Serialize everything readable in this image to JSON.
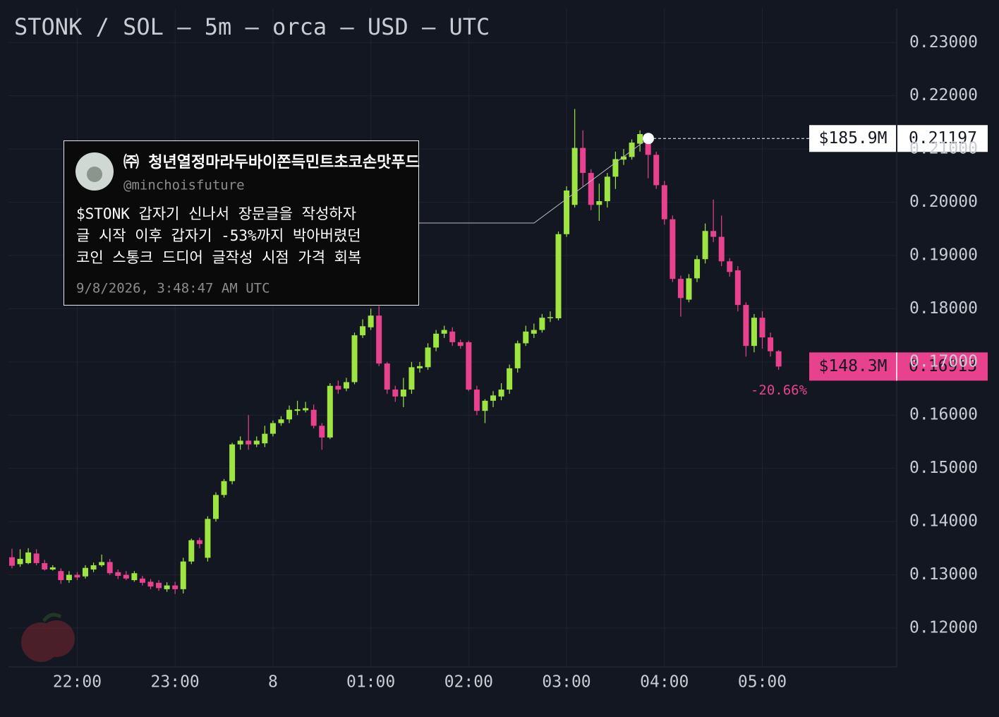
{
  "chart_data": {
    "type": "candlestick",
    "title": "STONK / SOL — 5m — orca — USD — UTC",
    "categories": [
      null,
      null,
      null,
      null,
      null,
      null,
      null,
      null,
      "22:00",
      null,
      null,
      null,
      null,
      null,
      null,
      null,
      null,
      null,
      null,
      null,
      "23:00",
      null,
      null,
      null,
      null,
      null,
      null,
      null,
      null,
      null,
      null,
      null,
      "8",
      null,
      null,
      null,
      null,
      null,
      null,
      null,
      null,
      null,
      null,
      null,
      "01:00",
      null,
      null,
      null,
      null,
      null,
      null,
      null,
      null,
      null,
      null,
      null,
      "02:00",
      null,
      null,
      null,
      null,
      null,
      null,
      null,
      null,
      null,
      null,
      null,
      "03:00",
      null,
      null,
      null,
      null,
      null,
      null,
      null,
      null,
      null,
      null,
      null,
      "04:00",
      null,
      null,
      null,
      null,
      null,
      null,
      null,
      null,
      null,
      null,
      null,
      "05:00",
      null,
      null
    ],
    "open": [
      0.1333,
      0.132,
      0.1322,
      0.134,
      0.1322,
      0.131,
      0.1307,
      0.129,
      0.13,
      0.1297,
      0.131,
      0.1318,
      0.1324,
      0.1305,
      0.13,
      0.129,
      0.1293,
      0.1287,
      0.1285,
      0.1273,
      0.128,
      0.1273,
      0.1325,
      0.1365,
      0.1332,
      0.1405,
      0.145,
      0.1476,
      0.1545,
      0.1552,
      0.1545,
      0.1547,
      0.1565,
      0.1585,
      0.1592,
      0.1608,
      0.1609,
      0.161,
      0.158,
      0.1558,
      0.1655,
      0.165,
      0.1662,
      0.175,
      0.1765,
      0.1787,
      0.1697,
      0.1648,
      0.1635,
      0.1648,
      0.1688,
      0.169,
      0.1727,
      0.1753,
      0.1757,
      0.1737,
      0.1737,
      0.1648,
      0.1608,
      0.1627,
      0.1635,
      0.1648,
      0.1688,
      0.1735,
      0.1753,
      0.176,
      0.1782,
      0.1782,
      0.194,
      0.1995,
      0.2102,
      0.2055,
      0.1995,
      0.2002,
      0.2048,
      0.208,
      0.2085,
      0.211,
      0.2122,
      0.2089,
      0.2032,
      0.1968,
      0.1856,
      0.1817,
      0.1857,
      0.1893,
      0.1946,
      0.1935,
      0.1889,
      0.1872,
      0.1807,
      0.173,
      0.1783,
      0.1746,
      0.172
    ],
    "high": [
      0.1349,
      0.1348,
      0.135,
      0.1348,
      0.1328,
      0.1318,
      0.1312,
      0.1307,
      0.1305,
      0.1318,
      0.1323,
      0.1338,
      0.133,
      0.131,
      0.1307,
      0.1307,
      0.1298,
      0.1292,
      0.129,
      0.1286,
      0.1287,
      0.1332,
      0.1368,
      0.137,
      0.141,
      0.1455,
      0.148,
      0.1548,
      0.156,
      0.16,
      0.156,
      0.158,
      0.159,
      0.1598,
      0.1618,
      0.1627,
      0.1625,
      0.162,
      0.1585,
      0.166,
      0.1665,
      0.167,
      0.1755,
      0.178,
      0.18,
      0.1805,
      0.17,
      0.1655,
      0.167,
      0.17,
      0.17,
      0.1735,
      0.176,
      0.1768,
      0.1765,
      0.1742,
      0.174,
      0.1655,
      0.163,
      0.1645,
      0.166,
      0.1695,
      0.174,
      0.1768,
      0.1772,
      0.179,
      0.1795,
      0.1945,
      0.203,
      0.2175,
      0.2135,
      0.2062,
      0.2035,
      0.2055,
      0.2095,
      0.21,
      0.2118,
      0.2135,
      0.2125,
      0.2095,
      0.204,
      0.1975,
      0.1862,
      0.1865,
      0.19,
      0.196,
      0.2005,
      0.1975,
      0.1895,
      0.188,
      0.1812,
      0.179,
      0.1795,
      0.1755,
      0.1722
    ],
    "low": [
      0.1312,
      0.1315,
      0.132,
      0.1318,
      0.1308,
      0.1308,
      0.1283,
      0.1285,
      0.129,
      0.1293,
      0.1305,
      0.1315,
      0.13,
      0.1292,
      0.129,
      0.1287,
      0.128,
      0.1273,
      0.127,
      0.1268,
      0.1264,
      0.1265,
      0.132,
      0.135,
      0.1325,
      0.14,
      0.1445,
      0.147,
      0.1535,
      0.1535,
      0.154,
      0.154,
      0.156,
      0.158,
      0.1585,
      0.16,
      0.1605,
      0.1575,
      0.1535,
      0.1555,
      0.164,
      0.1645,
      0.1658,
      0.1745,
      0.176,
      0.1692,
      0.164,
      0.1625,
      0.1615,
      0.164,
      0.168,
      0.1685,
      0.172,
      0.1745,
      0.173,
      0.1725,
      0.1645,
      0.16,
      0.1585,
      0.1615,
      0.1628,
      0.164,
      0.168,
      0.173,
      0.1745,
      0.1755,
      0.1775,
      0.1778,
      0.1935,
      0.199,
      0.203,
      0.1985,
      0.1965,
      0.199,
      0.2025,
      0.207,
      0.208,
      0.2095,
      0.2045,
      0.2025,
      0.1958,
      0.185,
      0.1785,
      0.1812,
      0.185,
      0.1885,
      0.1925,
      0.188,
      0.186,
      0.1795,
      0.171,
      0.1718,
      0.1725,
      0.171,
      0.1685
    ],
    "close": [
      0.1317,
      0.133,
      0.1342,
      0.1322,
      0.131,
      0.1314,
      0.129,
      0.13,
      0.1295,
      0.1313,
      0.1318,
      0.1324,
      0.1303,
      0.1298,
      0.1293,
      0.1303,
      0.1285,
      0.1278,
      0.1275,
      0.128,
      0.1273,
      0.1325,
      0.1365,
      0.1358,
      0.1405,
      0.145,
      0.1476,
      0.1545,
      0.1552,
      0.1545,
      0.1552,
      0.1565,
      0.1585,
      0.1592,
      0.161,
      0.1611,
      0.1613,
      0.158,
      0.1558,
      0.1655,
      0.1648,
      0.1662,
      0.175,
      0.1767,
      0.1787,
      0.1697,
      0.1648,
      0.1635,
      0.1648,
      0.169,
      0.1692,
      0.1727,
      0.1753,
      0.176,
      0.1737,
      0.173,
      0.1648,
      0.1608,
      0.1627,
      0.1637,
      0.1648,
      0.1688,
      0.1735,
      0.1757,
      0.176,
      0.1783,
      0.1784,
      0.194,
      0.2022,
      0.2102,
      0.2055,
      0.1995,
      0.2002,
      0.2048,
      0.2081,
      0.2086,
      0.2112,
      0.2128,
      0.2089,
      0.2032,
      0.1968,
      0.1856,
      0.182,
      0.1857,
      0.1893,
      0.1946,
      0.1935,
      0.1889,
      0.1869,
      0.1807,
      0.173,
      0.1783,
      0.1746,
      0.172,
      0.16913
    ],
    "up_color": "#9fe541",
    "down_color": "#e8428f",
    "ylim": [
      0.1127,
      0.2364
    ],
    "yticks": [
      {
        "value": 0.12,
        "label": "0.12000"
      },
      {
        "value": 0.13,
        "label": "0.13000"
      },
      {
        "value": 0.14,
        "label": "0.14000"
      },
      {
        "value": 0.15,
        "label": "0.15000"
      },
      {
        "value": 0.16,
        "label": "0.16000"
      },
      {
        "value": 0.17,
        "label": "0.17000"
      },
      {
        "value": 0.18,
        "label": "0.18000"
      },
      {
        "value": 0.19,
        "label": "0.19000"
      },
      {
        "value": 0.2,
        "label": "0.20000"
      },
      {
        "value": 0.21,
        "label": "0.21000"
      },
      {
        "value": 0.22,
        "label": "0.22000"
      },
      {
        "value": 0.23,
        "label": "0.23000"
      }
    ],
    "grid": true,
    "price_marker": {
      "value": 0.21197,
      "market_cap": "$185.9M"
    },
    "last_price": {
      "value": 0.16913,
      "market_cap": "$148.3M",
      "change": "-20.66%"
    },
    "annotation": {
      "name": "㈜ 청년열정마라두바이쫀득민트초코손맛푸드",
      "handle": "@minchoisfuture",
      "lines": [
        "$STONK 갑자기 신나서 장문글을 작성하자",
        "글 시작 이후 갑자기 -53%까지 박아버렸던",
        "코인 스통크 드디어 글작성 시점 가격 회복"
      ],
      "time": "9/8/2026, 3:48:47 AM UTC"
    }
  }
}
